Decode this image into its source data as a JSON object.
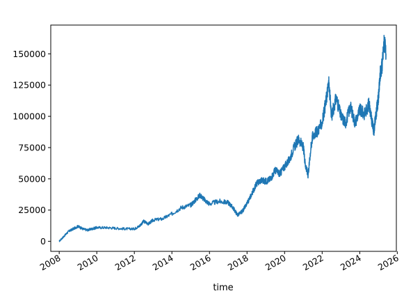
{
  "chart_data": {
    "type": "line",
    "title": "",
    "xlabel": "time",
    "ylabel": "",
    "xlim": [
      2007.55,
      2025.95
    ],
    "ylim": [
      -8000,
      173000
    ],
    "grid": false,
    "legend": "none",
    "line_color": "#1f77b4",
    "x_ticks": [
      2008,
      2010,
      2012,
      2014,
      2016,
      2018,
      2020,
      2022,
      2024,
      2026
    ],
    "x_tick_labels": [
      "2008",
      "2010",
      "2012",
      "2014",
      "2016",
      "2018",
      "2020",
      "2022",
      "2024",
      "2026"
    ],
    "y_ticks": [
      0,
      25000,
      50000,
      75000,
      100000,
      125000,
      150000
    ],
    "y_tick_labels": [
      "0",
      "25000",
      "50000",
      "75000",
      "100000",
      "125000",
      "150000"
    ],
    "series": [
      {
        "x": [
          2008.0,
          2008.25,
          2008.5,
          2008.75,
          2009.0,
          2009.25,
          2009.5,
          2009.75,
          2010.0,
          2010.5,
          2011.0,
          2011.5,
          2012.0,
          2012.25,
          2012.5,
          2012.75,
          2013.0,
          2013.5,
          2014.0,
          2014.5,
          2015.0,
          2015.25,
          2015.5,
          2015.75,
          2016.0,
          2016.5,
          2017.0,
          2017.25,
          2017.5,
          2017.75,
          2018.0,
          2018.25,
          2018.5,
          2018.75,
          2019.0,
          2019.25,
          2019.5,
          2019.75,
          2020.0,
          2020.25,
          2020.5,
          2020.75,
          2021.0,
          2021.1,
          2021.25,
          2021.4,
          2021.5,
          2021.75,
          2022.0,
          2022.2,
          2022.35,
          2022.5,
          2022.75,
          2023.0,
          2023.25,
          2023.5,
          2023.75,
          2024.0,
          2024.25,
          2024.5,
          2024.6,
          2024.75,
          2024.9,
          2025.0,
          2025.1,
          2025.2,
          2025.3,
          2025.4
        ],
        "y": [
          0,
          4000,
          8000,
          10000,
          12000,
          10000,
          9000,
          10000,
          11000,
          11000,
          10500,
          10000,
          10000,
          12000,
          16000,
          14000,
          17000,
          18000,
          22000,
          27000,
          29000,
          33000,
          37000,
          33000,
          30000,
          32000,
          31000,
          27000,
          21000,
          24000,
          30000,
          38000,
          46000,
          49000,
          48000,
          50000,
          57000,
          54000,
          60000,
          65000,
          75000,
          82000,
          75000,
          62000,
          53000,
          75000,
          85000,
          88000,
          95000,
          112000,
          127000,
          100000,
          115000,
          100000,
          95000,
          108000,
          95000,
          105000,
          102000,
          110000,
          100000,
          88000,
          105000,
          115000,
          135000,
          142000,
          160000,
          150000
        ]
      }
    ]
  }
}
